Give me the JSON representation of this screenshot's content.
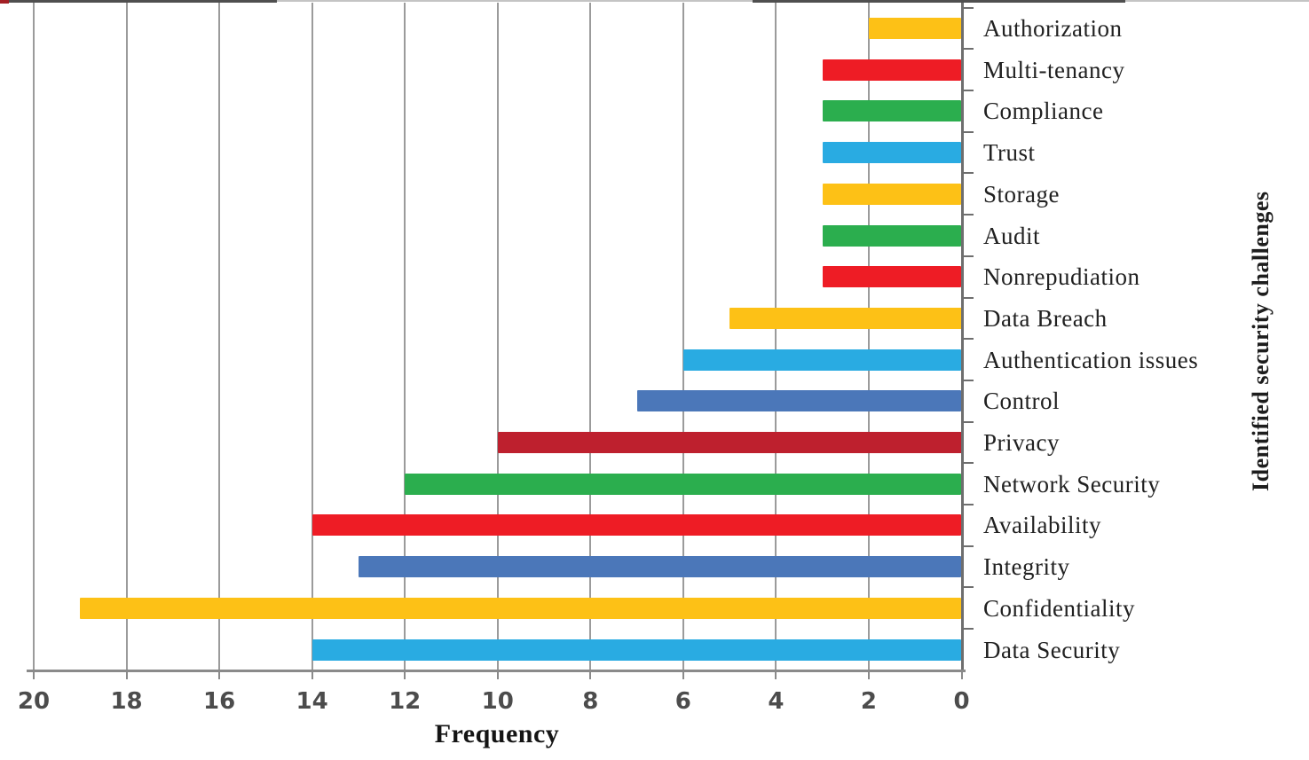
{
  "figure": {
    "x_axis_title": "Frequency",
    "y_axis_title": "Identified security challenges"
  },
  "chart_data": {
    "type": "bar",
    "orientation": "horizontal",
    "title": "",
    "xlabel": "Frequency",
    "ylabel": "Identified security challenges",
    "x_axis": {
      "range": [
        0,
        20
      ],
      "reversed": true,
      "tick_interval": 2,
      "ticks": [
        20,
        18,
        16,
        14,
        12,
        10,
        8,
        6,
        4,
        2,
        0
      ]
    },
    "grid": "vertical-gridlines-on",
    "legend": "none",
    "categories_top_to_bottom": [
      "Authorization",
      "Multi-tenancy",
      "Compliance",
      "Trust",
      "Storage",
      "Audit",
      "Nonrepudiation",
      "Data Breach",
      "Authentication issues",
      "Control",
      "Privacy",
      "Network Security",
      "Availability",
      "Integrity",
      "Confidentiality",
      "Data Security"
    ],
    "values": [
      2,
      3,
      3,
      3,
      3,
      3,
      3,
      5,
      6,
      7,
      10,
      12,
      14,
      13,
      19,
      14
    ],
    "bar_colors": [
      "#FDC116",
      "#EE1C25",
      "#2BAE4E",
      "#29ABE2",
      "#FDC116",
      "#2BAE4E",
      "#EE1C25",
      "#FDC116",
      "#29ABE2",
      "#4B77B9",
      "#BE202E",
      "#2BAE4E",
      "#EE1C25",
      "#4B77B9",
      "#FDC116",
      "#29ABE2"
    ],
    "palette": {
      "yellow": "#FDC116",
      "red": "#EE1C25",
      "green": "#2BAE4E",
      "light_blue": "#29ABE2",
      "steel_blue": "#4B77B9",
      "dark_red": "#BE202E",
      "gridline_gray": "#9b9b9b",
      "axis_gray": "#6e6e6e"
    }
  }
}
